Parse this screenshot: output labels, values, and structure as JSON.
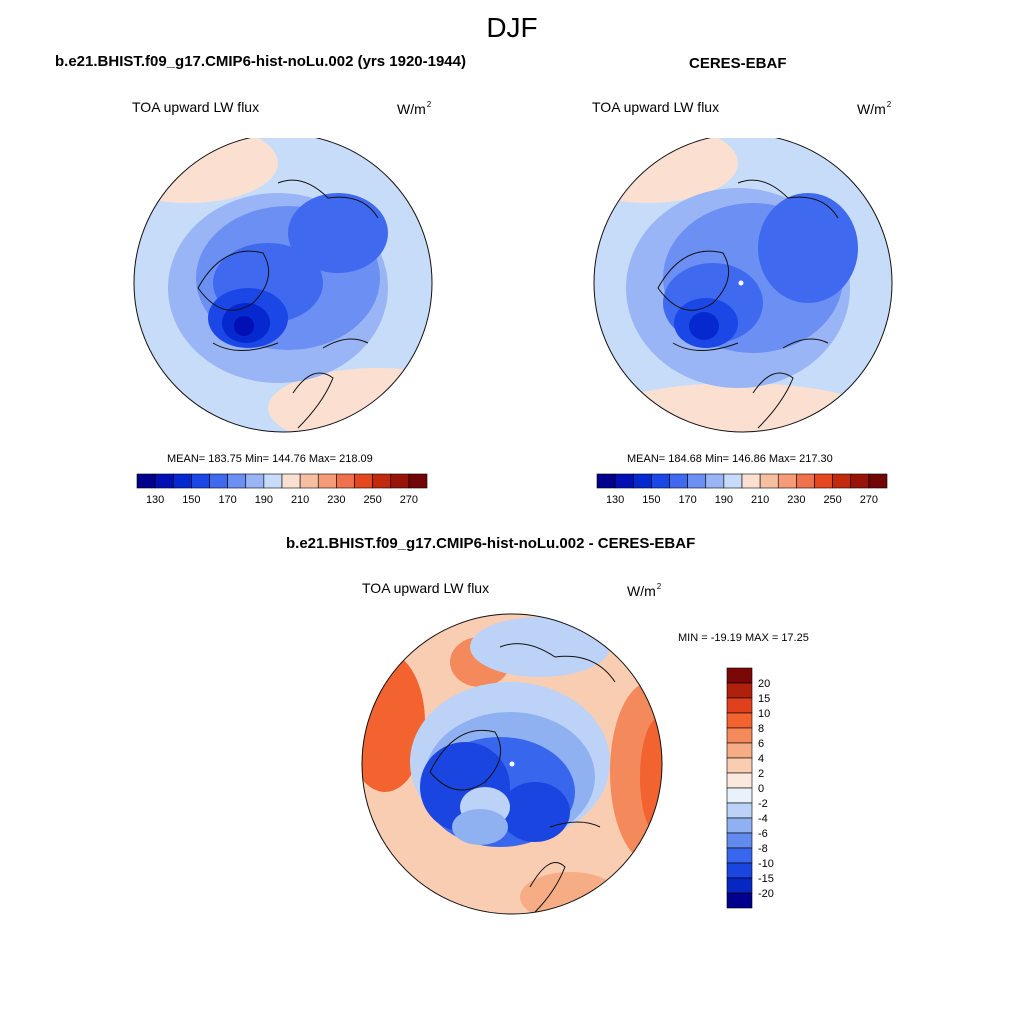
{
  "season": "DJF",
  "panels": [
    {
      "title": "b.e21.BHIST.f09_g17.CMIP6-hist-noLu.002 (yrs 1920-1944)",
      "variable": "TOA upward LW flux",
      "units_base": "W/m",
      "units_exp": "2",
      "stats": "MEAN= 183.75  Min= 144.76  Max= 218.09"
    },
    {
      "title": "CERES-EBAF",
      "variable": "TOA upward LW flux",
      "units_base": "W/m",
      "units_exp": "2",
      "stats": "MEAN= 184.68  Min= 146.86  Max= 217.30"
    },
    {
      "title": "b.e21.BHIST.f09_g17.CMIP6-hist-noLu.002 - CERES-EBAF",
      "variable": "TOA upward LW flux",
      "units_base": "W/m",
      "units_exp": "2",
      "stats": "MIN = -19.19 MAX =  17.25"
    }
  ],
  "abs_colorbar": {
    "labels": [
      "130",
      "150",
      "170",
      "190",
      "210",
      "230",
      "250",
      "270"
    ],
    "colors": [
      "#00008c",
      "#0010b4",
      "#0528cf",
      "#1a47e6",
      "#3f6af0",
      "#6b8ff2",
      "#9ab5f5",
      "#c7dcf8",
      "#fbe0d2",
      "#f6bfa2",
      "#f59b78",
      "#f0724d",
      "#e5471f",
      "#c22a0e",
      "#981409",
      "#700605"
    ]
  },
  "diff_colorbar": {
    "labels": [
      "20",
      "15",
      "10",
      "8",
      "6",
      "4",
      "2",
      "0",
      "-2",
      "-4",
      "-6",
      "-8",
      "-10",
      "-15",
      "-20"
    ],
    "colors": [
      "#7a0806",
      "#b0210c",
      "#e0401b",
      "#f26330",
      "#f4895c",
      "#f6ad86",
      "#f9cdb2",
      "#fbe8df",
      "#e9f1fb",
      "#bcd2f6",
      "#8fb0f1",
      "#628aef",
      "#3866ec",
      "#1a45e0",
      "#0727c3",
      "#00008c"
    ]
  }
}
